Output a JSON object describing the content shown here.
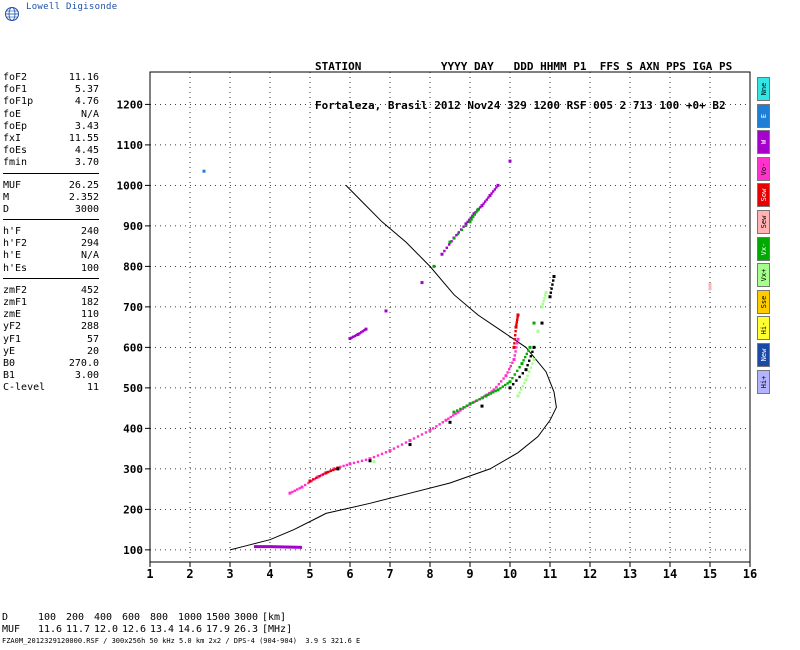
{
  "brand": {
    "logo_text": "Lowell Digisonde"
  },
  "header": {
    "labels_line": "STATION            YYYY DAY   DDD HHMM P1  FFS S AXN PPS IGA PS",
    "values_line": "Fortaleza, Brasil 2012 Nov24 329 1200 RSF 005 2 713 100 +0+ B2"
  },
  "params": {
    "group1": [
      {
        "name": "foF2",
        "value": "11.16"
      },
      {
        "name": "foF1",
        "value": "5.37"
      },
      {
        "name": "foF1p",
        "value": "4.76"
      },
      {
        "name": "foE",
        "value": "N/A"
      },
      {
        "name": "foEp",
        "value": "3.43"
      },
      {
        "name": "fxI",
        "value": "11.55"
      },
      {
        "name": "foEs",
        "value": "4.45"
      },
      {
        "name": "fmin",
        "value": "3.70"
      }
    ],
    "group2": [
      {
        "name": "MUF",
        "value": "26.25"
      },
      {
        "name": "M",
        "value": "2.352"
      },
      {
        "name": "D",
        "value": "3000"
      }
    ],
    "group3": [
      {
        "name": "h'F",
        "value": "240"
      },
      {
        "name": "h'F2",
        "value": "294"
      },
      {
        "name": "h'E",
        "value": "N/A"
      },
      {
        "name": "h'Es",
        "value": "100"
      }
    ],
    "group4": [
      {
        "name": "zmF2",
        "value": "452"
      },
      {
        "name": "zmF1",
        "value": "182"
      },
      {
        "name": "zmE",
        "value": "110"
      },
      {
        "name": "yF2",
        "value": "288"
      },
      {
        "name": "yF1",
        "value": "57"
      },
      {
        "name": "yE",
        "value": "20"
      },
      {
        "name": "B0",
        "value": "270.0"
      },
      {
        "name": "B1",
        "value": "3.00"
      },
      {
        "name": "C-level",
        "value": "11"
      }
    ]
  },
  "legend": [
    {
      "label": "Nne",
      "color": "#33e6e6"
    },
    {
      "label": "E",
      "color": "#1f7fd6"
    },
    {
      "label": "W",
      "color": "#a600cc"
    },
    {
      "label": "Vo-",
      "color": "#ff33cc"
    },
    {
      "label": "Sow",
      "color": "#e60000"
    },
    {
      "label": "Sew",
      "color": "#ffb3b3"
    },
    {
      "label": "Vx-",
      "color": "#00aa00"
    },
    {
      "label": "Vx+",
      "color": "#a6ff8c"
    },
    {
      "label": "Sse",
      "color": "#ffcc00"
    },
    {
      "label": "Hi-",
      "color": "#ffff33"
    },
    {
      "label": "New",
      "color": "#1a4aa6"
    },
    {
      "label": "Hi+",
      "color": "#b3b3ff"
    }
  ],
  "muf_table": {
    "d_label": "D",
    "d_values": [
      "100",
      "200",
      "400",
      "600",
      "800",
      "1000",
      "1500",
      "3000"
    ],
    "d_unit": "[km]",
    "muf_label": "MUF",
    "muf_values": [
      "11.6",
      "11.7",
      "12.0",
      "12.6",
      "13.4",
      "14.6",
      "17.9",
      "26.3"
    ],
    "muf_unit": "[MHz]"
  },
  "footer": "FZA0M_2012329120000.RSF / 300x256h 50 kHz 5.0 km 2x2 / DPS-4 (904-904)  3.9 S 321.6 E",
  "chart_data": {
    "type": "scatter",
    "x_ticks": [
      1,
      2,
      3,
      4,
      5,
      6,
      7,
      8,
      9,
      10,
      11,
      12,
      13,
      14,
      15,
      16
    ],
    "y_ticks": [
      100,
      200,
      300,
      400,
      500,
      600,
      700,
      800,
      900,
      1000,
      1100,
      1200
    ],
    "xlim": [
      1,
      16
    ],
    "ylim": [
      70,
      1280
    ],
    "grid": true,
    "series": [
      {
        "color": "#ff33cc",
        "points": [
          [
            4.5,
            240
          ],
          [
            4.8,
            255
          ],
          [
            5.2,
            280
          ],
          [
            5.6,
            300
          ],
          [
            6.0,
            312
          ],
          [
            6.5,
            325
          ],
          [
            7.0,
            345
          ],
          [
            7.5,
            370
          ],
          [
            8.0,
            395
          ],
          [
            8.4,
            420
          ],
          [
            8.7,
            440
          ],
          [
            9.0,
            460
          ],
          [
            9.3,
            475
          ],
          [
            9.6,
            495
          ],
          [
            9.9,
            530
          ],
          [
            10.1,
            570
          ],
          [
            10.2,
            620
          ]
        ]
      },
      {
        "color": "#a600cc",
        "points": [
          [
            8.3,
            830
          ],
          [
            8.6,
            870
          ],
          [
            8.9,
            905
          ],
          [
            9.1,
            930
          ],
          [
            9.3,
            950
          ],
          [
            9.5,
            975
          ],
          [
            9.7,
            1000
          ],
          [
            10.0,
            1060
          ],
          [
            6.0,
            622
          ],
          [
            6.2,
            632
          ],
          [
            6.4,
            645
          ],
          [
            7.8,
            760
          ],
          [
            6.9,
            690
          ]
        ]
      },
      {
        "color": "#00aa00",
        "points": [
          [
            8.1,
            800
          ],
          [
            8.5,
            860
          ],
          [
            9.0,
            910
          ],
          [
            9.2,
            940
          ],
          [
            8.6,
            440
          ],
          [
            9.0,
            460
          ],
          [
            9.4,
            480
          ],
          [
            9.7,
            495
          ],
          [
            10.0,
            515
          ],
          [
            10.3,
            560
          ],
          [
            10.5,
            600
          ],
          [
            10.6,
            660
          ]
        ]
      },
      {
        "color": "#e60000",
        "points": [
          [
            5.0,
            270
          ],
          [
            5.4,
            290
          ],
          [
            5.7,
            302
          ],
          [
            10.1,
            600
          ],
          [
            10.15,
            650
          ],
          [
            10.2,
            680
          ]
        ]
      },
      {
        "color": "#a6ff8c",
        "points": [
          [
            10.2,
            480
          ],
          [
            10.4,
            520
          ],
          [
            10.6,
            570
          ],
          [
            10.7,
            640
          ],
          [
            10.8,
            700
          ],
          [
            10.9,
            735
          ],
          [
            6.6,
            318
          ]
        ]
      },
      {
        "color": "#000000",
        "points": [
          [
            5.7,
            300
          ],
          [
            6.5,
            320
          ],
          [
            7.5,
            360
          ],
          [
            8.5,
            415
          ],
          [
            9.3,
            455
          ],
          [
            10.0,
            500
          ],
          [
            10.4,
            545
          ],
          [
            10.6,
            600
          ],
          [
            10.8,
            660
          ],
          [
            11.0,
            725
          ],
          [
            11.1,
            775
          ]
        ]
      },
      {
        "color": "#1f7fd6",
        "points": [
          [
            2.35,
            1035
          ]
        ]
      },
      {
        "color": "#ffb3b3",
        "points": [
          [
            15.0,
            745
          ],
          [
            15.0,
            755
          ]
        ]
      }
    ],
    "profile_line": [
      [
        3.0,
        100
      ],
      [
        3.4,
        110
      ],
      [
        4.0,
        125
      ],
      [
        4.6,
        150
      ],
      [
        5.2,
        180
      ],
      [
        5.4,
        190
      ],
      [
        6.5,
        215
      ],
      [
        7.5,
        240
      ],
      [
        8.5,
        265
      ],
      [
        9.5,
        300
      ],
      [
        10.2,
        340
      ],
      [
        10.7,
        380
      ],
      [
        11.0,
        420
      ],
      [
        11.16,
        452
      ],
      [
        11.1,
        490
      ],
      [
        10.9,
        540
      ],
      [
        10.4,
        600
      ],
      [
        9.8,
        640
      ],
      [
        9.2,
        680
      ],
      [
        8.6,
        730
      ],
      [
        8.0,
        800
      ],
      [
        7.4,
        860
      ],
      [
        6.8,
        910
      ],
      [
        6.3,
        960
      ],
      [
        5.9,
        1000
      ]
    ],
    "es_trace": [
      [
        3.6,
        108
      ],
      [
        4.0,
        108
      ],
      [
        4.4,
        107
      ],
      [
        4.8,
        106
      ]
    ]
  }
}
